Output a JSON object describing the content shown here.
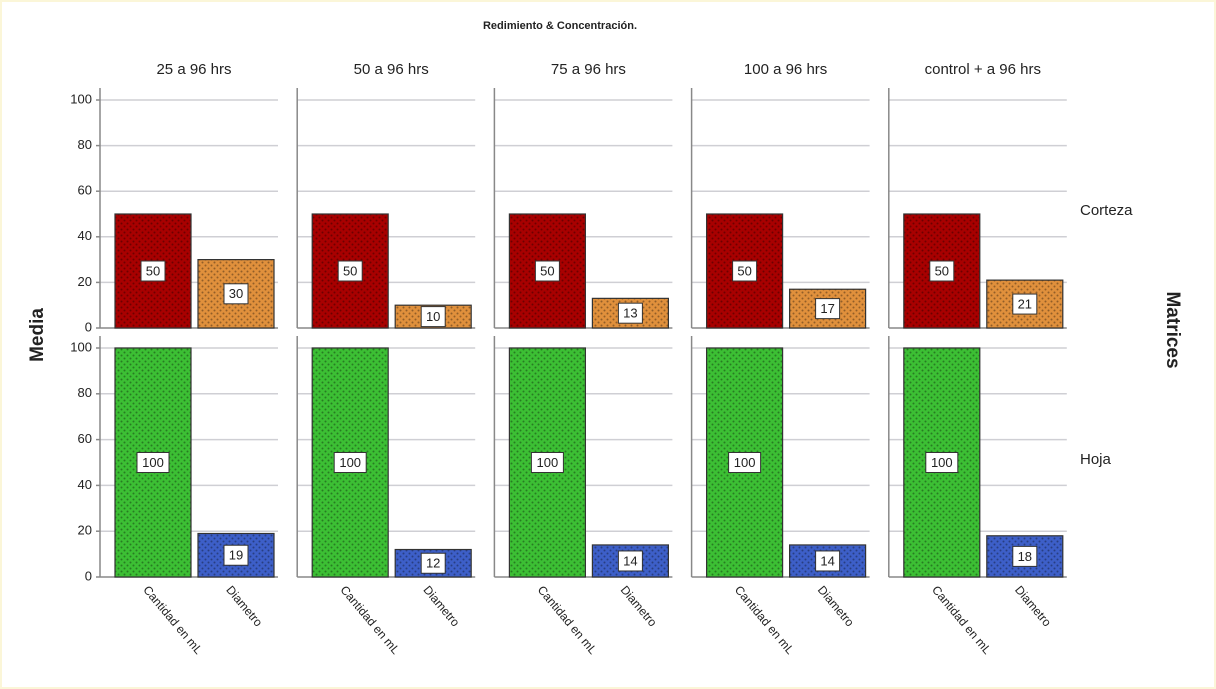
{
  "chart_data": {
    "type": "bar",
    "title": "Redimiento & Concentración.",
    "ylabel": "Media",
    "row_title": "Matrices",
    "columns": [
      "25 a 96 hrs",
      "50 a 96 hrs",
      "75 a 96 hrs",
      "100 a 96 hrs",
      "control + a 96 hrs"
    ],
    "categories": [
      "Cantidad en mL",
      "Diametro"
    ],
    "ylim": [
      0,
      100
    ],
    "yticks": [
      0,
      20,
      40,
      60,
      80,
      100
    ],
    "grid": true,
    "rows": [
      {
        "name": "Corteza",
        "colors": [
          "#a80000",
          "#e0903c"
        ],
        "values": [
          [
            50,
            30
          ],
          [
            50,
            10
          ],
          [
            50,
            13
          ],
          [
            50,
            17
          ],
          [
            50,
            21
          ]
        ]
      },
      {
        "name": "Hoja",
        "colors": [
          "#3cbf34",
          "#3d5fc8"
        ],
        "values": [
          [
            100,
            19
          ],
          [
            100,
            12
          ],
          [
            100,
            14
          ],
          [
            100,
            14
          ],
          [
            100,
            18
          ]
        ]
      }
    ]
  }
}
